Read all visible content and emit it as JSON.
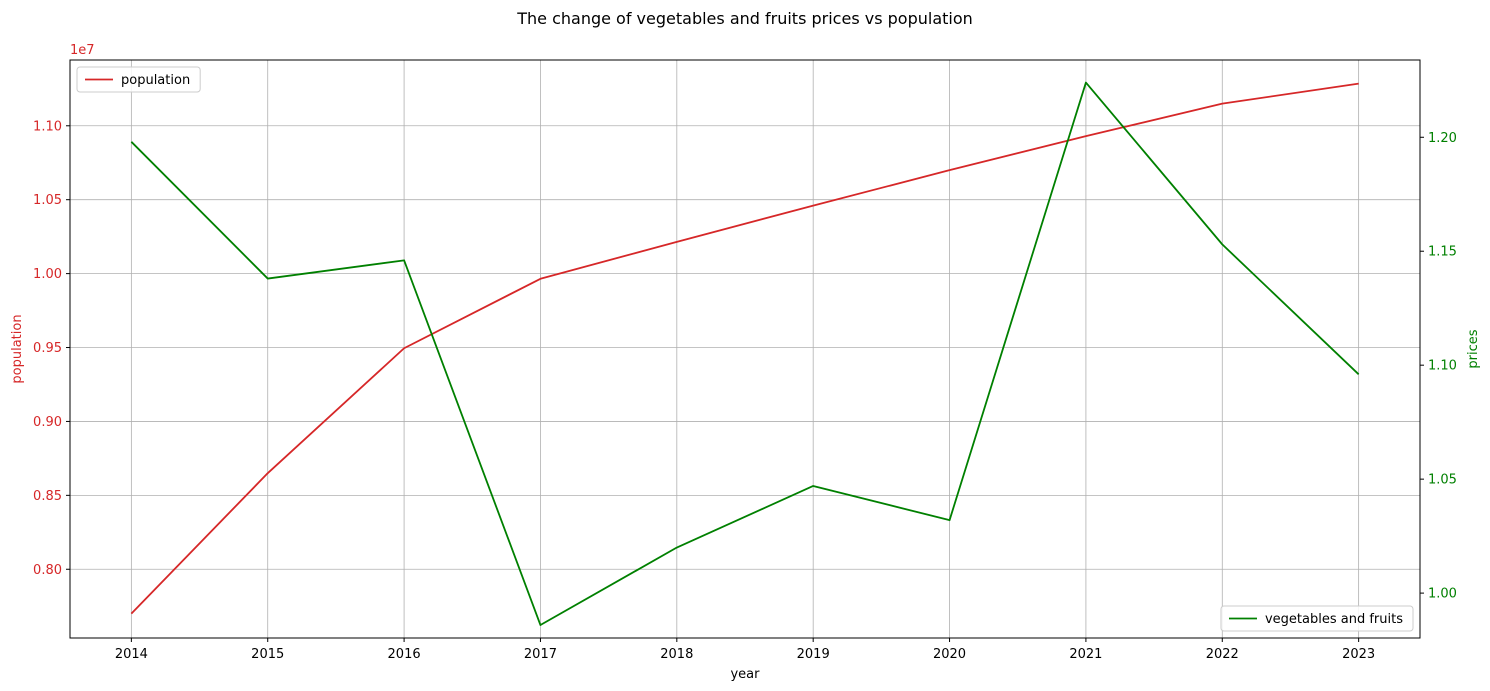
{
  "chart_data": {
    "type": "line",
    "title": "The change of vegetables and fruits prices vs population",
    "xlabel": "year",
    "x": [
      2014,
      2015,
      2016,
      2017,
      2018,
      2019,
      2020,
      2021,
      2022,
      2023
    ],
    "xlim": [
      2013.55,
      2023.45
    ],
    "grid": true,
    "left_axis": {
      "label": "population",
      "color": "#d62728",
      "offset_text": "1e7",
      "scale": 10000000,
      "ylim": [
        0.7535,
        1.1445
      ],
      "ticks": [
        0.8,
        0.85,
        0.9,
        0.95,
        1.0,
        1.05,
        1.1
      ],
      "tick_labels": [
        "0.80",
        "0.85",
        "0.90",
        "0.95",
        "1.00",
        "1.05",
        "1.10"
      ]
    },
    "right_axis": {
      "label": "prices",
      "color": "#008000",
      "ylim": [
        0.9803,
        1.2339
      ],
      "ticks": [
        1.0,
        1.05,
        1.1,
        1.15,
        1.2
      ],
      "tick_labels": [
        "1.00",
        "1.05",
        "1.10",
        "1.15",
        "1.20"
      ]
    },
    "series": [
      {
        "name": "population",
        "axis": "left",
        "color": "#d62728",
        "values": [
          7700000,
          8650000,
          9495000,
          9965000,
          10215000,
          10460000,
          10700000,
          10930000,
          11150000,
          11285000
        ]
      },
      {
        "name": "vegetables and fruits",
        "axis": "right",
        "color": "#008000",
        "values": [
          1.198,
          1.138,
          1.146,
          0.986,
          1.02,
          1.047,
          1.032,
          1.224,
          1.153,
          1.096
        ]
      }
    ],
    "legends": [
      {
        "series": "population",
        "position": "upper left"
      },
      {
        "series": "vegetables and fruits",
        "position": "lower right"
      }
    ]
  }
}
